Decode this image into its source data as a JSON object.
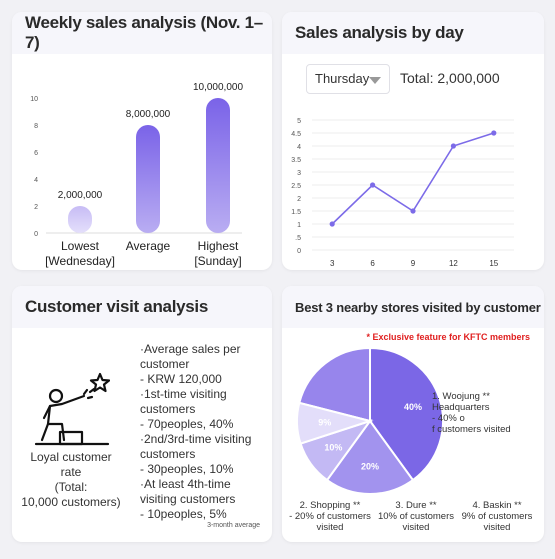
{
  "weekly": {
    "title": "Weekly sales analysis (Nov. 1–7)",
    "chart_data": {
      "type": "bar",
      "categories": [
        "Lowest [Wednesday]",
        "Average",
        "Highest [Sunday]"
      ],
      "category_lines": [
        [
          "Lowest",
          "[Wednesday]"
        ],
        [
          "Average"
        ],
        [
          "Highest",
          "[Sunday]"
        ]
      ],
      "values": [
        2000000,
        8000000,
        10000000
      ],
      "value_labels": [
        "2,000,000",
        "8,000,000",
        "10,000,000"
      ],
      "y_ticks": [
        "0",
        "2",
        "4",
        "6",
        "8",
        "10"
      ],
      "ylim": [
        0,
        10000000
      ]
    }
  },
  "daily": {
    "title": "Sales analysis by day",
    "day_select": "Thursday",
    "total": "Total: 2,000,000",
    "chart_data": {
      "type": "line",
      "x": [
        3,
        6,
        9,
        12,
        15
      ],
      "y": [
        1,
        2.5,
        1.5,
        4,
        4.5
      ],
      "x_ticks": [
        "3",
        "6",
        "9",
        "12",
        "15"
      ],
      "y_ticks": [
        "0",
        ".5",
        "1",
        "1.5",
        "2",
        "2.5",
        "3",
        "3.5",
        "4",
        "4.5",
        "5"
      ],
      "ylim": [
        0,
        5
      ],
      "xlim": [
        1.5,
        16.5
      ],
      "color": "#7c6be8"
    }
  },
  "visits": {
    "title": "Customer visit analysis",
    "loyal_label_lines": [
      "Loyal customer",
      "rate",
      "(Total:",
      "10,000 customers)"
    ],
    "stats_lines": [
      "·Average sales per",
      "customer",
      "- KRW 120,000",
      "·1st-time visiting",
      "customers",
      "- 70peoples, 40%",
      "·2nd/3rd-time visiting",
      "customers",
      "- 30peoples, 10%",
      "·At least 4th-time",
      "visiting customers",
      "- 10peoples, 5%"
    ],
    "note": "3-month average",
    "icon": "pointing-person-star-icon"
  },
  "nearby": {
    "title": "Best 3 nearby stores visited by customer",
    "exclusive": "* Exclusive feature for KFTC members",
    "chart_data": {
      "type": "pie",
      "slices": [
        {
          "label": "40%",
          "value": 40,
          "color": "#7b67e6"
        },
        {
          "label": "20%",
          "value": 20,
          "color": "#a293ee"
        },
        {
          "label": "10%",
          "value": 10,
          "color": "#c3b9f4"
        },
        {
          "label": "9%",
          "value": 9,
          "color": "#e3defa"
        }
      ]
    },
    "legend": [
      [
        "1. Woojung **",
        "Headquarters",
        "- 40% o",
        "f customers visited"
      ],
      [
        "2. Shopping **",
        "- 20% of customers",
        "visited"
      ],
      [
        "3. Dure **",
        "10% of customers",
        "visited"
      ],
      [
        "4. Baskin **",
        "9% of customers",
        "visited"
      ]
    ]
  }
}
